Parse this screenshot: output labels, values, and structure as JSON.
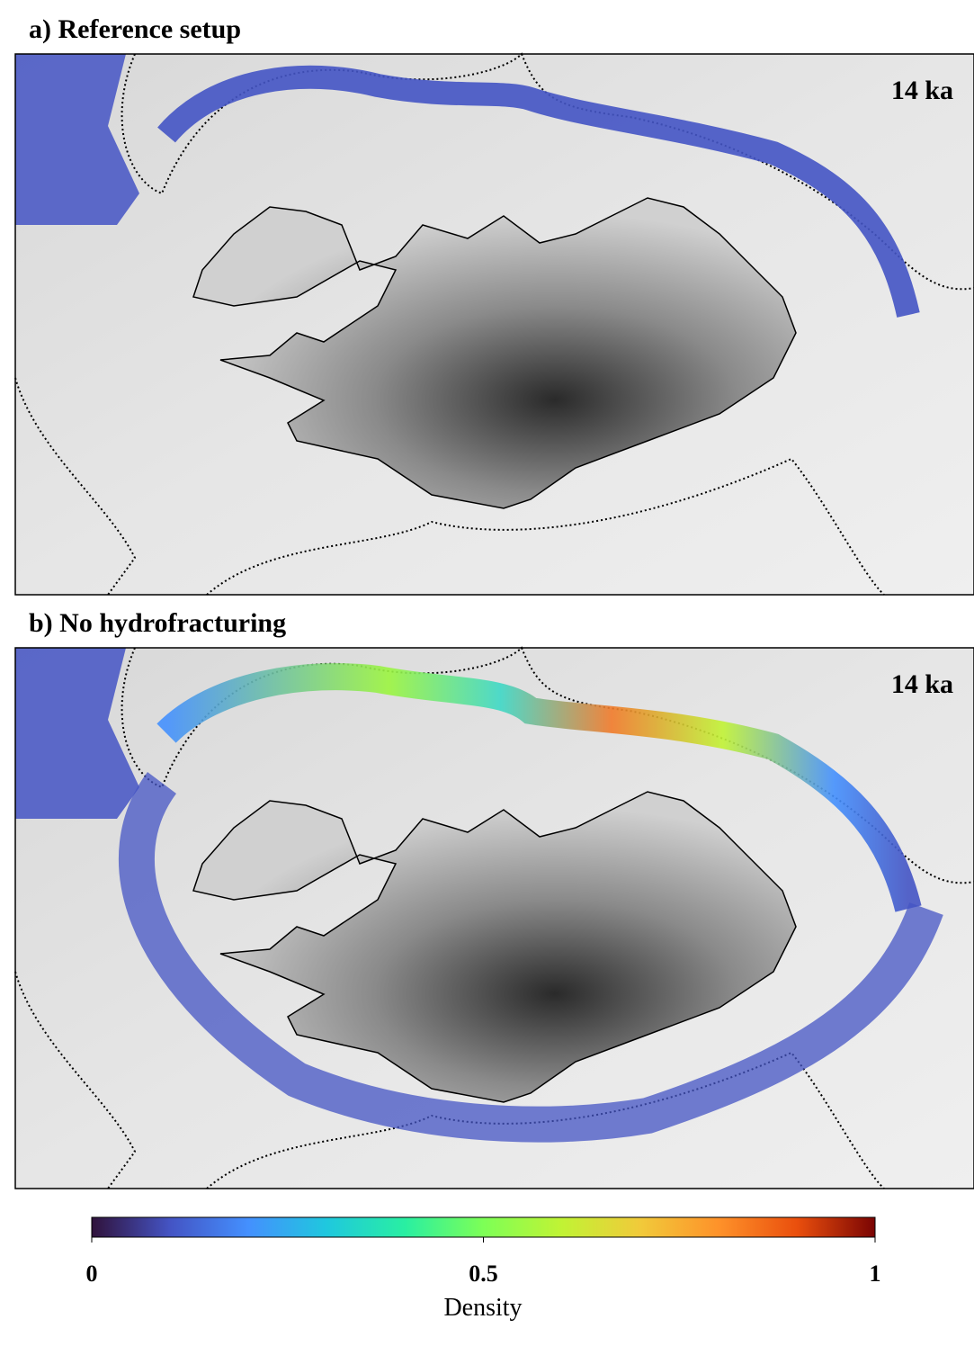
{
  "panels": [
    {
      "title": "a) Reference setup",
      "time_label": "14 ka"
    },
    {
      "title": "b) No hydrofracturing",
      "time_label": "14 ka"
    }
  ],
  "colorbar": {
    "label": "Density",
    "lim": [
      0,
      1
    ],
    "ticks": [
      0,
      0.5,
      1
    ]
  }
}
